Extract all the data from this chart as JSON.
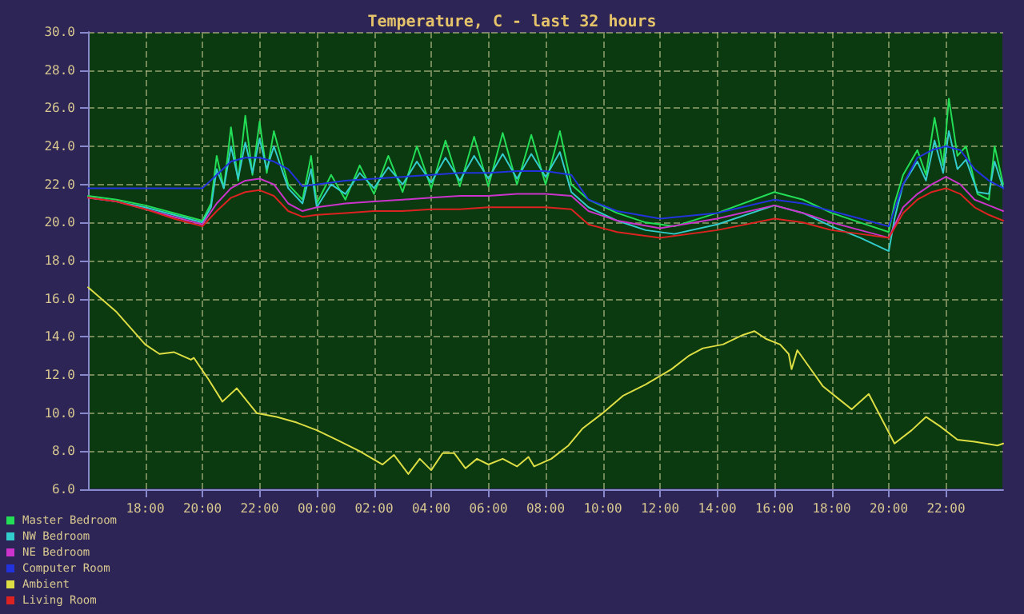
{
  "chart_data": {
    "type": "line",
    "title": "Temperature, C - last 32 hours",
    "xlim": [
      "2000-01-01T16:00",
      "2000-01-03T00:00"
    ],
    "xticks": [
      {
        "value": "2000-01-01T18:00",
        "label": "18:00"
      },
      {
        "value": "2000-01-01T20:00",
        "label": "20:00"
      },
      {
        "value": "2000-01-01T22:00",
        "label": "22:00"
      },
      {
        "value": "2000-01-02T00:00",
        "label": "00:00"
      },
      {
        "value": "2000-01-02T02:00",
        "label": "02:00"
      },
      {
        "value": "2000-01-02T04:00",
        "label": "04:00"
      },
      {
        "value": "2000-01-02T06:00",
        "label": "06:00"
      },
      {
        "value": "2000-01-02T08:00",
        "label": "08:00"
      },
      {
        "value": "2000-01-02T10:00",
        "label": "10:00"
      },
      {
        "value": "2000-01-02T12:00",
        "label": "12:00"
      },
      {
        "value": "2000-01-02T14:00",
        "label": "14:00"
      },
      {
        "value": "2000-01-02T16:00",
        "label": "16:00"
      },
      {
        "value": "2000-01-02T18:00",
        "label": "18:00"
      },
      {
        "value": "2000-01-02T20:00",
        "label": "20:00"
      },
      {
        "value": "2000-01-02T22:00",
        "label": "22:00"
      }
    ],
    "ylim": [
      6,
      30
    ],
    "yticks": [
      {
        "value": 6,
        "label": "6.0"
      },
      {
        "value": 8,
        "label": "8.0"
      },
      {
        "value": 10,
        "label": "10.0"
      },
      {
        "value": 12,
        "label": "12.0"
      },
      {
        "value": 14,
        "label": "14.0"
      },
      {
        "value": 16,
        "label": "16.0"
      },
      {
        "value": 18,
        "label": "18.0"
      },
      {
        "value": 20,
        "label": "20.0"
      },
      {
        "value": 22,
        "label": "22.0"
      },
      {
        "value": 24,
        "label": "24.0"
      },
      {
        "value": 26,
        "label": "26.0"
      },
      {
        "value": 28,
        "label": "28.0"
      },
      {
        "value": 30,
        "label": "30.0"
      }
    ],
    "grid": true,
    "legend": "bottom left",
    "marker": "none",
    "line_style": "solid",
    "series": [
      {
        "name": "Master Bedroom",
        "color": "#22dd55",
        "x": [
          "2000-01-01T16:00",
          "2000-01-01T17:00",
          "2000-01-01T18:00",
          "2000-01-01T19:00",
          "2000-01-01T20:00",
          "2000-01-01T20:18",
          "2000-01-01T20:30",
          "2000-01-01T20:45",
          "2000-01-01T21:00",
          "2000-01-01T21:15",
          "2000-01-01T21:30",
          "2000-01-01T21:45",
          "2000-01-01T22:00",
          "2000-01-01T22:15",
          "2000-01-01T22:30",
          "2000-01-01T23:00",
          "2000-01-01T23:30",
          "2000-01-01T23:48",
          "2000-01-02T00:00",
          "2000-01-02T00:30",
          "2000-01-02T01:00",
          "2000-01-02T01:30",
          "2000-01-02T02:00",
          "2000-01-02T02:30",
          "2000-01-02T03:00",
          "2000-01-02T03:30",
          "2000-01-02T04:00",
          "2000-01-02T04:30",
          "2000-01-02T05:00",
          "2000-01-02T05:30",
          "2000-01-02T06:00",
          "2000-01-02T06:30",
          "2000-01-02T07:00",
          "2000-01-02T07:30",
          "2000-01-02T08:00",
          "2000-01-02T08:30",
          "2000-01-02T08:54",
          "2000-01-02T09:30",
          "2000-01-02T10:30",
          "2000-01-02T11:30",
          "2000-01-02T12:30",
          "2000-01-02T14:00",
          "2000-01-02T16:00",
          "2000-01-02T17:00",
          "2000-01-02T18:00",
          "2000-01-02T19:00",
          "2000-01-02T20:00",
          "2000-01-02T20:12",
          "2000-01-02T20:30",
          "2000-01-02T21:00",
          "2000-01-02T21:18",
          "2000-01-02T21:36",
          "2000-01-02T21:54",
          "2000-01-02T22:06",
          "2000-01-02T22:24",
          "2000-01-02T22:42",
          "2000-01-02T23:06",
          "2000-01-02T23:30",
          "2000-01-02T23:42",
          "2000-01-03T00:00"
        ],
        "values": [
          21.4,
          21.2,
          20.9,
          20.5,
          20.1,
          21,
          23.5,
          21.8,
          25,
          22.2,
          25.6,
          22.5,
          25.3,
          22.6,
          24.8,
          22,
          21.2,
          23.5,
          21,
          22.5,
          21.2,
          23,
          21.5,
          23.5,
          21.6,
          24,
          21.8,
          24.3,
          21.9,
          24.5,
          21.9,
          24.7,
          22,
          24.6,
          22,
          24.8,
          22,
          21.2,
          20.5,
          20,
          19.8,
          20.5,
          21.6,
          21.2,
          20.5,
          20,
          19.5,
          21,
          22.5,
          23.8,
          22.5,
          25.5,
          23,
          26.5,
          23.5,
          24,
          21.5,
          21.2,
          24,
          22
        ]
      },
      {
        "name": "NW Bedroom",
        "color": "#33cccc",
        "x": [
          "2000-01-01T16:00",
          "2000-01-01T17:00",
          "2000-01-01T18:00",
          "2000-01-01T19:00",
          "2000-01-01T20:00",
          "2000-01-01T20:18",
          "2000-01-01T20:30",
          "2000-01-01T20:45",
          "2000-01-01T21:00",
          "2000-01-01T21:15",
          "2000-01-01T21:30",
          "2000-01-01T21:45",
          "2000-01-01T22:00",
          "2000-01-01T22:15",
          "2000-01-01T22:30",
          "2000-01-01T23:00",
          "2000-01-01T23:30",
          "2000-01-01T23:48",
          "2000-01-02T00:00",
          "2000-01-02T00:30",
          "2000-01-02T01:00",
          "2000-01-02T01:30",
          "2000-01-02T02:00",
          "2000-01-02T02:30",
          "2000-01-02T03:00",
          "2000-01-02T03:30",
          "2000-01-02T04:00",
          "2000-01-02T04:30",
          "2000-01-02T05:00",
          "2000-01-02T05:30",
          "2000-01-02T06:00",
          "2000-01-02T06:30",
          "2000-01-02T07:00",
          "2000-01-02T07:30",
          "2000-01-02T08:00",
          "2000-01-02T08:30",
          "2000-01-02T08:54",
          "2000-01-02T09:30",
          "2000-01-02T10:30",
          "2000-01-02T11:30",
          "2000-01-02T12:30",
          "2000-01-02T14:00",
          "2000-01-02T16:00",
          "2000-01-02T17:00",
          "2000-01-02T18:00",
          "2000-01-02T19:00",
          "2000-01-02T20:00",
          "2000-01-02T20:12",
          "2000-01-02T20:30",
          "2000-01-02T21:00",
          "2000-01-02T21:18",
          "2000-01-02T21:36",
          "2000-01-02T21:54",
          "2000-01-02T22:06",
          "2000-01-02T22:24",
          "2000-01-02T22:42",
          "2000-01-02T23:06",
          "2000-01-02T23:30",
          "2000-01-02T23:42",
          "2000-01-03T00:00"
        ],
        "values": [
          21.3,
          21.1,
          20.8,
          20.4,
          20,
          20.8,
          22.8,
          21.8,
          24,
          22.3,
          24.2,
          22.6,
          24.4,
          22.8,
          24,
          21.8,
          21,
          22.8,
          20.8,
          22,
          21.5,
          22.6,
          21.8,
          22.9,
          22,
          23.2,
          22.1,
          23.4,
          22.2,
          23.5,
          22.3,
          23.6,
          22.3,
          23.6,
          22.4,
          23.7,
          21.6,
          20.8,
          20.1,
          19.6,
          19.4,
          19.9,
          20.9,
          20.5,
          19.8,
          19.2,
          18.5,
          20.2,
          22,
          23.2,
          22.2,
          24.3,
          22.6,
          24.8,
          22.8,
          23.3,
          21.6,
          21.5,
          23.2,
          21.8
        ]
      },
      {
        "name": "NE Bedroom",
        "color": "#cc33cc",
        "x": [
          "2000-01-01T16:00",
          "2000-01-01T17:00",
          "2000-01-01T18:00",
          "2000-01-01T19:00",
          "2000-01-01T20:00",
          "2000-01-01T20:30",
          "2000-01-01T21:00",
          "2000-01-01T21:30",
          "2000-01-01T22:00",
          "2000-01-01T22:30",
          "2000-01-01T23:00",
          "2000-01-01T23:30",
          "2000-01-02T00:00",
          "2000-01-02T01:00",
          "2000-01-02T02:00",
          "2000-01-02T03:00",
          "2000-01-02T04:00",
          "2000-01-02T05:00",
          "2000-01-02T06:00",
          "2000-01-02T07:00",
          "2000-01-02T08:00",
          "2000-01-02T08:54",
          "2000-01-02T09:30",
          "2000-01-02T10:30",
          "2000-01-02T12:00",
          "2000-01-02T14:00",
          "2000-01-02T16:00",
          "2000-01-02T17:00",
          "2000-01-02T18:00",
          "2000-01-02T19:00",
          "2000-01-02T20:00",
          "2000-01-02T20:30",
          "2000-01-02T21:00",
          "2000-01-02T21:30",
          "2000-01-02T22:00",
          "2000-01-02T22:30",
          "2000-01-02T23:00",
          "2000-01-02T23:30",
          "2000-01-03T00:00"
        ],
        "values": [
          21.3,
          21.1,
          20.7,
          20.3,
          19.9,
          21,
          21.8,
          22.2,
          22.3,
          22,
          21,
          20.6,
          20.8,
          21,
          21.1,
          21.2,
          21.3,
          21.4,
          21.4,
          21.5,
          21.5,
          21.4,
          20.6,
          20.1,
          19.7,
          20.2,
          20.9,
          20.5,
          20,
          19.6,
          19.2,
          20.8,
          21.5,
          22,
          22.4,
          22,
          21.2,
          20.9,
          20.6
        ]
      },
      {
        "name": "Computer Room",
        "color": "#2233dd",
        "x": [
          "2000-01-01T16:00",
          "2000-01-01T17:00",
          "2000-01-01T18:00",
          "2000-01-01T19:00",
          "2000-01-01T20:00",
          "2000-01-01T20:30",
          "2000-01-01T21:00",
          "2000-01-01T21:30",
          "2000-01-01T22:00",
          "2000-01-01T22:30",
          "2000-01-01T23:00",
          "2000-01-01T23:30",
          "2000-01-02T00:00",
          "2000-01-02T01:00",
          "2000-01-02T02:00",
          "2000-01-02T03:00",
          "2000-01-02T04:00",
          "2000-01-02T05:00",
          "2000-01-02T06:00",
          "2000-01-02T07:00",
          "2000-01-02T08:00",
          "2000-01-02T08:54",
          "2000-01-02T09:30",
          "2000-01-02T10:30",
          "2000-01-02T12:00",
          "2000-01-02T14:00",
          "2000-01-02T16:00",
          "2000-01-02T17:00",
          "2000-01-02T18:00",
          "2000-01-02T19:00",
          "2000-01-02T20:00",
          "2000-01-02T20:30",
          "2000-01-02T21:00",
          "2000-01-02T21:30",
          "2000-01-02T22:00",
          "2000-01-02T22:30",
          "2000-01-02T23:00",
          "2000-01-02T23:30",
          "2000-01-03T00:00"
        ],
        "values": [
          21.8,
          21.8,
          21.8,
          21.8,
          21.8,
          22.5,
          23.2,
          23.4,
          23.4,
          23.2,
          22.8,
          21.9,
          22,
          22.2,
          22.3,
          22.4,
          22.5,
          22.6,
          22.6,
          22.7,
          22.7,
          22.5,
          21.2,
          20.6,
          20.2,
          20.5,
          21.2,
          21,
          20.6,
          20.2,
          19.8,
          22,
          23.4,
          23.8,
          24,
          23.8,
          22.8,
          22.2,
          21.8
        ]
      },
      {
        "name": "Ambient",
        "color": "#dddd44",
        "x": [
          "2000-01-01T16:00",
          "2000-01-01T17:00",
          "2000-01-01T18:00",
          "2000-01-01T18:30",
          "2000-01-01T19:00",
          "2000-01-01T19:36",
          "2000-01-01T19:42",
          "2000-01-01T20:12",
          "2000-01-01T20:42",
          "2000-01-01T21:12",
          "2000-01-01T21:54",
          "2000-01-01T22:36",
          "2000-01-01T23:18",
          "2000-01-02T00:00",
          "2000-01-02T00:42",
          "2000-01-02T01:30",
          "2000-01-02T02:18",
          "2000-01-02T02:42",
          "2000-01-02T03:12",
          "2000-01-02T03:36",
          "2000-01-02T04:00",
          "2000-01-02T04:24",
          "2000-01-02T04:48",
          "2000-01-02T05:12",
          "2000-01-02T05:36",
          "2000-01-02T06:00",
          "2000-01-02T06:30",
          "2000-01-02T07:00",
          "2000-01-02T07:24",
          "2000-01-02T07:36",
          "2000-01-02T08:12",
          "2000-01-02T08:48",
          "2000-01-02T09:18",
          "2000-01-02T10:00",
          "2000-01-02T10:42",
          "2000-01-02T11:30",
          "2000-01-02T12:24",
          "2000-01-02T13:00",
          "2000-01-02T13:30",
          "2000-01-02T14:12",
          "2000-01-02T14:54",
          "2000-01-02T15:18",
          "2000-01-02T15:42",
          "2000-01-02T16:12",
          "2000-01-02T16:30",
          "2000-01-02T16:36",
          "2000-01-02T16:48",
          "2000-01-02T17:42",
          "2000-01-02T18:12",
          "2000-01-02T18:42",
          "2000-01-02T19:18",
          "2000-01-02T20:12",
          "2000-01-02T20:48",
          "2000-01-02T21:18",
          "2000-01-02T21:48",
          "2000-01-02T22:24",
          "2000-01-02T23:00",
          "2000-01-02T23:48",
          "2000-01-03T00:00"
        ],
        "values": [
          16.6,
          15.3,
          13.6,
          13.1,
          13.2,
          12.8,
          12.9,
          11.8,
          10.6,
          11.3,
          10,
          9.8,
          9.5,
          9.1,
          8.6,
          8,
          7.3,
          7.8,
          6.8,
          7.6,
          7,
          7.9,
          7.9,
          7.1,
          7.6,
          7.3,
          7.6,
          7.2,
          7.7,
          7.2,
          7.6,
          8.3,
          9.2,
          10,
          10.9,
          11.5,
          12.3,
          13,
          13.4,
          13.6,
          14.1,
          14.3,
          13.9,
          13.6,
          13.1,
          12.3,
          13.3,
          11.4,
          10.8,
          10.2,
          11,
          8.4,
          9.1,
          9.8,
          9.3,
          8.6,
          8.5,
          8.3,
          8.4
        ]
      },
      {
        "name": "Living Room",
        "color": "#dd2222",
        "x": [
          "2000-01-01T16:00",
          "2000-01-01T17:00",
          "2000-01-01T18:00",
          "2000-01-01T19:00",
          "2000-01-01T20:00",
          "2000-01-01T20:30",
          "2000-01-01T21:00",
          "2000-01-01T21:30",
          "2000-01-01T22:00",
          "2000-01-01T22:30",
          "2000-01-01T23:00",
          "2000-01-01T23:30",
          "2000-01-02T00:00",
          "2000-01-02T01:00",
          "2000-01-02T02:00",
          "2000-01-02T03:00",
          "2000-01-02T04:00",
          "2000-01-02T05:00",
          "2000-01-02T06:00",
          "2000-01-02T07:00",
          "2000-01-02T08:00",
          "2000-01-02T08:54",
          "2000-01-02T09:30",
          "2000-01-02T10:30",
          "2000-01-02T12:00",
          "2000-01-02T14:00",
          "2000-01-02T16:00",
          "2000-01-02T17:00",
          "2000-01-02T18:00",
          "2000-01-02T19:00",
          "2000-01-02T20:00",
          "2000-01-02T20:30",
          "2000-01-02T21:00",
          "2000-01-02T21:30",
          "2000-01-02T22:00",
          "2000-01-02T22:30",
          "2000-01-02T23:00",
          "2000-01-02T23:30",
          "2000-01-03T00:00"
        ],
        "values": [
          21.3,
          21.1,
          20.7,
          20.2,
          19.8,
          20.6,
          21.3,
          21.6,
          21.7,
          21.4,
          20.6,
          20.3,
          20.4,
          20.5,
          20.6,
          20.6,
          20.7,
          20.7,
          20.8,
          20.8,
          20.8,
          20.7,
          19.9,
          19.5,
          19.2,
          19.6,
          20.2,
          20,
          19.6,
          19.4,
          19.2,
          20.5,
          21.2,
          21.6,
          21.8,
          21.5,
          20.8,
          20.4,
          20.1
        ]
      }
    ]
  }
}
